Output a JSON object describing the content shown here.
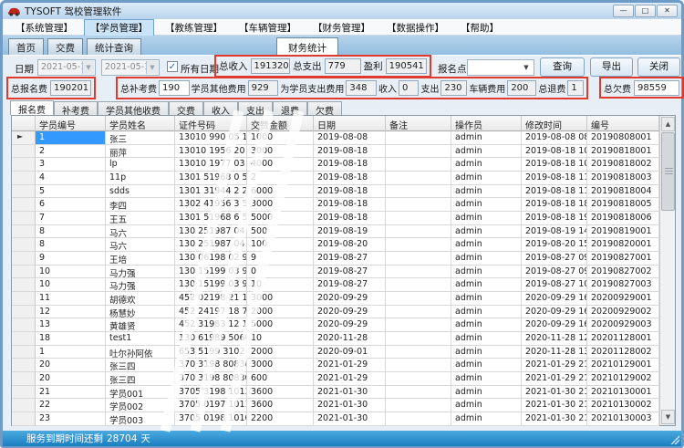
{
  "window": {
    "title": "TYSOFT 驾校管理软件"
  },
  "colors": {
    "highlight_red": "#e03a2e",
    "selection_blue": "#3399ff",
    "statusbar_blue": "#1b7ec2",
    "tabstrip_blue": "#93bfe0"
  },
  "icons": {
    "minimize": "—",
    "maximize": "□",
    "close": "✕",
    "dropdown": "▼",
    "check": "✓",
    "row_pointer": "►",
    "scroll_up": "▲",
    "scroll_down": "▼",
    "car": "car-logo"
  },
  "menu": {
    "items": [
      "【系统管理】",
      "【学员管理】",
      "【教练管理】",
      "【车辆管理】",
      "【财务管理】",
      "【数据操作】",
      "【帮助】"
    ],
    "active_index": 1
  },
  "nav_tabs": {
    "items": [
      "首页",
      "交费",
      "统计查询"
    ],
    "doc_tab": "财务统计"
  },
  "filters": {
    "date_label": "日期",
    "date_from": "2021-05-17",
    "date_to": "2021-05-17",
    "all_dates_label": "所有日期",
    "all_dates_checked": true,
    "regpoint_label": "报名点",
    "regpoint_value": "",
    "query_button": "查询",
    "export_button": "导出",
    "close_button": "关闭"
  },
  "summary": {
    "total_income_label": "总收入",
    "total_income": "191320",
    "total_expense_label": "总支出",
    "total_expense": "779",
    "profit_label": "盈利",
    "profit": "190541",
    "reg_fee_label": "总报名费",
    "reg_fee": "190201",
    "makeup_fee_label": "总补考费",
    "makeup_fee": "190",
    "other_fee_label": "学员其他费用",
    "other_fee": "929",
    "paid_for_students_label": "为学员支出费用",
    "paid_for_students": "348",
    "income_label": "收入",
    "income": "0",
    "expense_label": "支出",
    "expense": "230",
    "vehicle_fee_label": "车辆费用",
    "vehicle_fee": "200",
    "refund_label": "总退费",
    "refund": "1",
    "owed_label": "总欠费",
    "owed": "98559"
  },
  "sub_tabs": {
    "items": [
      "报名费",
      "补考费",
      "学员其他收费",
      "交费",
      "收入",
      "支出",
      "退费",
      "欠费"
    ],
    "active_index": 0
  },
  "grid": {
    "columns": [
      "学员编号",
      "学员姓名",
      "证件号码",
      "交费金额",
      "日期",
      "备注",
      "操作员",
      "修改时间",
      "编号"
    ],
    "rows": [
      {
        "no": "1",
        "name": "张三",
        "id": "13010 990 05 13",
        "amount": "1000",
        "date": "2019-08-08",
        "note": "",
        "op": "admin",
        "time": "2019-08-08 08:5...",
        "code": "20190808001"
      },
      {
        "no": "2",
        "name": "丽萍",
        "id": "13010 1956 20 13",
        "amount": "3000",
        "date": "2019-08-18",
        "note": "",
        "op": "admin",
        "time": "2019-08-18 10:3...",
        "code": "20190818001"
      },
      {
        "no": "3",
        "name": "lp",
        "id": "13010 1977 03 22",
        "amount": "4000",
        "date": "2019-08-18",
        "note": "",
        "op": "admin",
        "time": "2019-08-18 10:4...",
        "code": "20190818002"
      },
      {
        "no": "4",
        "name": "11p",
        "id": "1301 51968 0 516",
        "amount": "2",
        "date": "2019-08-18",
        "note": "",
        "op": "admin",
        "time": "2019-08-18 11:1...",
        "code": "20190818003"
      },
      {
        "no": "5",
        "name": "sdds",
        "id": "1301 31944 2 215",
        "amount": "6000",
        "date": "2019-08-18",
        "note": "",
        "op": "admin",
        "time": "2019-08-18 11:3...",
        "code": "20190818004"
      },
      {
        "no": "6",
        "name": "李四",
        "id": "1302 41956 3 501",
        "amount": "3000",
        "date": "2019-08-18",
        "note": "",
        "op": "admin",
        "time": "2019-08-18 18:3...",
        "code": "20190818005"
      },
      {
        "no": "7",
        "name": "王五",
        "id": "1301 51968 6 513",
        "amount": "5000",
        "date": "2019-08-18",
        "note": "",
        "op": "admin",
        "time": "2019-08-18 19:1...",
        "code": "20190818006"
      },
      {
        "no": "8",
        "name": "马六",
        "id": "130 251987 04 513",
        "amount": "500",
        "date": "2019-08-19",
        "note": "",
        "op": "admin",
        "time": "2019-08-19 14:4...",
        "code": "20190819001"
      },
      {
        "no": "8",
        "name": "马六",
        "id": "130 251987 04 513",
        "amount": "100",
        "date": "2019-08-20",
        "note": "",
        "op": "admin",
        "time": "2019-08-20 15:4...",
        "code": "20190820001"
      },
      {
        "no": "9",
        "name": "王培",
        "id": "130 06198 02 911",
        "amount": "9",
        "date": "2019-08-27",
        "note": "",
        "op": "admin",
        "time": "2019-08-27 09:3...",
        "code": "20190827001"
      },
      {
        "no": "10",
        "name": "马力强",
        "id": "130 15199 03 911",
        "amount": "0",
        "date": "2019-08-27",
        "note": "",
        "op": "admin",
        "time": "2019-08-27 09:5...",
        "code": "20190827002"
      },
      {
        "no": "10",
        "name": "马力强",
        "id": "130 15199 03 911",
        "amount": "10",
        "date": "2019-08-27",
        "note": "",
        "op": "admin",
        "time": "2019-08-27 10:0...",
        "code": "20190827003"
      },
      {
        "no": "11",
        "name": "胡德欢",
        "id": "452 02198 21 10",
        "amount": "3000",
        "date": "2020-09-29",
        "note": "",
        "op": "admin",
        "time": "2020-09-29 16:4...",
        "code": "20200929001"
      },
      {
        "no": "12",
        "name": "杨慧妙",
        "id": "452 24197 18 71",
        "amount": "2000",
        "date": "2020-09-29",
        "note": "",
        "op": "admin",
        "time": "2020-09-29 16:4...",
        "code": "20200929002"
      },
      {
        "no": "13",
        "name": "黄雄贤",
        "id": "452 31983 12 17",
        "amount": "5000",
        "date": "2020-09-29",
        "note": "",
        "op": "admin",
        "time": "2020-09-29 16:4...",
        "code": "20200929003"
      },
      {
        "no": "18",
        "name": "test1",
        "id": "130 61989 5060 11",
        "amount": "10",
        "date": "2020-11-28",
        "note": "",
        "op": "admin",
        "time": "2020-11-28 12:0...",
        "code": "20201128001"
      },
      {
        "no": "1",
        "name": "吐尔孙阿依",
        "id": "653 5199 3102 7",
        "amount": "2000",
        "date": "2020-09-01",
        "note": "",
        "op": "admin",
        "time": "2020-11-28 13:0...",
        "code": "20201128002"
      },
      {
        "no": "20",
        "name": "张三四",
        "id": "370 3198 80830 8",
        "amount": "3000",
        "date": "2021-01-29",
        "note": "",
        "op": "admin",
        "time": "2021-01-29 21:0...",
        "code": "20210129001"
      },
      {
        "no": "20",
        "name": "张三四",
        "id": "370 3198 80830 8",
        "amount": "600",
        "date": "2021-01-29",
        "note": "",
        "op": "admin",
        "time": "2021-01-29 21:1...",
        "code": "20210129002"
      },
      {
        "no": "21",
        "name": "学员001",
        "id": "3705 3198 1013 1",
        "amount": "3600",
        "date": "2021-01-30",
        "note": "",
        "op": "admin",
        "time": "2021-01-30 21:1...",
        "code": "20210130001"
      },
      {
        "no": "22",
        "name": "学员002",
        "id": "3705 0197 1011 5",
        "amount": "3600",
        "date": "2021-01-30",
        "note": "",
        "op": "admin",
        "time": "2021-01-30 21:1...",
        "code": "20210130002"
      },
      {
        "no": "23",
        "name": "学员003",
        "id": "3705 0198 1010 04",
        "amount": "2200",
        "date": "2021-01-30",
        "note": "",
        "op": "admin",
        "time": "2021-01-30 21:1...",
        "code": "20210130003"
      }
    ]
  },
  "statusbar": {
    "text": "服务到期时间还剩",
    "days": "28704",
    "unit": "天"
  }
}
